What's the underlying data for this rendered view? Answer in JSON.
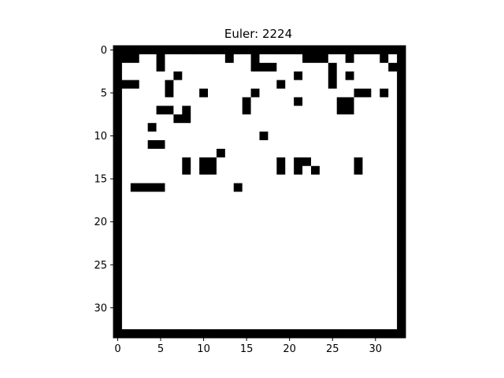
{
  "chart_data": {
    "type": "heatmap",
    "title": "Euler: 2224",
    "xlabel": "",
    "ylabel": "",
    "xlim": [
      -0.5,
      33.5
    ],
    "ylim": [
      33.5,
      -0.5
    ],
    "x_ticks": [
      0,
      5,
      10,
      15,
      20,
      25,
      30
    ],
    "y_ticks": [
      0,
      5,
      10,
      15,
      20,
      25,
      30
    ],
    "grid": false,
    "colormap": {
      "0": "#ffffff",
      "1": "#000000"
    },
    "rows": [
      "1111111111111111111111111111111111",
      "1110010000000100100000111001000101",
      "1000010000000000111000000100000011",
      "1000000100000000000001000101000001",
      "1110001000000000000100000100000001",
      "1000001000100000100000000000110101",
      "1000000000000001000001000011000001",
      "1000011010000001000000000011000001",
      "1000000110000000000000000000000001",
      "1000100000000000000000000000000001",
      "1000000000000000010000000000000001",
      "1000110000000000000000000000000001",
      "1000000000001000000000000000000001",
      "1000000010110000000101100000100001",
      "1000000010110000000101010000100001",
      "1000000000000000000000000000000001",
      "1011110000000010000000000000000001",
      "1000000000000000000000000000000001",
      "1000000000000000000000000000000001",
      "1000000000000000000000000000000001",
      "1000000000000000000000000000000001",
      "1000000000000000000000000000000001",
      "1000000000000000000000000000000001",
      "1000000000000000000000000000000001",
      "1000000000000000000000000000000001",
      "1000000000000000000000000000000001",
      "1000000000000000000000000000000001",
      "1000000000000000000000000000000001",
      "1000000000000000000000000000000001",
      "1000000000000000000000000000000001",
      "1000000000000000000000000000000001",
      "1000000000000000000000000000000001",
      "1000000000000000000000000000000001",
      "1111111111111111111111111111111111"
    ]
  }
}
